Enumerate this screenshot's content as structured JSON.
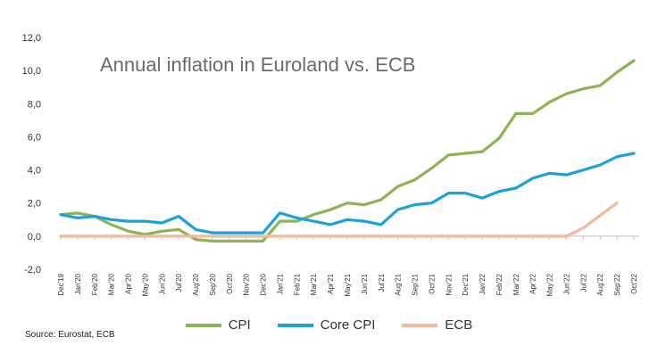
{
  "chart_data": {
    "type": "line",
    "title": "Annual inflation in Euroland vs. ECB",
    "xlabel": "",
    "ylabel": "",
    "ylim": [
      -2,
      12
    ],
    "yticks": [
      "-2,0",
      "0,0",
      "2,0",
      "4,0",
      "6,0",
      "8,0",
      "10,0",
      "12,0"
    ],
    "categories": [
      "Dec'19",
      "Jan'20",
      "Feb'20",
      "Mar'20",
      "Apr'20",
      "May'20",
      "Jun'20",
      "Jul'20",
      "Aug'20",
      "Sep'20",
      "Oct'20",
      "Nov'20",
      "Dec'20",
      "Jan'21",
      "Feb'21",
      "Mar'21",
      "Apr'21",
      "May'21",
      "Jun'21",
      "Jul'21",
      "Aug'21",
      "Sep'21",
      "Oct'21",
      "Nov'21",
      "Dec'21",
      "Jan'22",
      "Feb'22",
      "Mar'22",
      "Apr'22",
      "May'22",
      "Jun'22",
      "Jul'22",
      "Aug'22",
      "Sep'22",
      "Oct'22"
    ],
    "series": [
      {
        "name": "CPI",
        "color": "#8db354",
        "values": [
          1.3,
          1.4,
          1.2,
          0.7,
          0.3,
          0.1,
          0.3,
          0.4,
          -0.2,
          -0.3,
          -0.3,
          -0.3,
          -0.3,
          0.9,
          0.9,
          1.3,
          1.6,
          2.0,
          1.9,
          2.2,
          3.0,
          3.4,
          4.1,
          4.9,
          5.0,
          5.1,
          5.9,
          7.4,
          7.4,
          8.1,
          8.6,
          8.9,
          9.1,
          9.9,
          10.6
        ]
      },
      {
        "name": "Core CPI",
        "color": "#1ba2d8",
        "values": [
          1.3,
          1.1,
          1.2,
          1.0,
          0.9,
          0.9,
          0.8,
          1.2,
          0.4,
          0.2,
          0.2,
          0.2,
          0.2,
          1.4,
          1.1,
          0.9,
          0.7,
          1.0,
          0.9,
          0.7,
          1.6,
          1.9,
          2.0,
          2.6,
          2.6,
          2.3,
          2.7,
          2.9,
          3.5,
          3.8,
          3.7,
          4.0,
          4.3,
          4.8,
          5.0
        ]
      },
      {
        "name": "ECB",
        "color": "#f4b89e",
        "values": [
          0,
          0,
          0,
          0,
          0,
          0,
          0,
          0,
          0,
          0,
          0,
          0,
          0,
          0,
          0,
          0,
          0,
          0,
          0,
          0,
          0,
          0,
          0,
          0,
          0,
          0,
          0,
          0,
          0,
          0,
          0,
          0.5,
          1.25,
          2.0,
          null
        ]
      }
    ],
    "grid": false,
    "legend": "bottom"
  },
  "source": "Source: Eurostat, ECB"
}
